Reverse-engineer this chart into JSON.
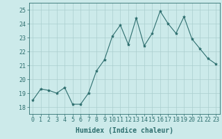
{
  "x": [
    0,
    1,
    2,
    3,
    4,
    5,
    6,
    7,
    8,
    9,
    10,
    11,
    12,
    13,
    14,
    15,
    16,
    17,
    18,
    19,
    20,
    21,
    22,
    23
  ],
  "y": [
    18.5,
    19.3,
    19.2,
    19.0,
    19.4,
    18.2,
    18.2,
    19.0,
    20.6,
    21.4,
    23.1,
    23.9,
    22.5,
    24.4,
    22.4,
    23.3,
    24.9,
    24.0,
    23.3,
    24.5,
    22.9,
    22.2,
    21.5,
    21.1
  ],
  "line_color": "#2d6e6e",
  "marker": "*",
  "marker_size": 3,
  "bg_color": "#cceaea",
  "grid_color": "#aacece",
  "xlabel": "Humidex (Indice chaleur)",
  "ylim": [
    17.5,
    25.5
  ],
  "yticks": [
    18,
    19,
    20,
    21,
    22,
    23,
    24,
    25
  ],
  "xticks": [
    0,
    1,
    2,
    3,
    4,
    5,
    6,
    7,
    8,
    9,
    10,
    11,
    12,
    13,
    14,
    15,
    16,
    17,
    18,
    19,
    20,
    21,
    22,
    23
  ],
  "xlabel_fontsize": 7,
  "tick_fontsize": 6,
  "tick_color": "#2d6e6e",
  "axis_color": "#2d6e6e",
  "linewidth": 0.8
}
